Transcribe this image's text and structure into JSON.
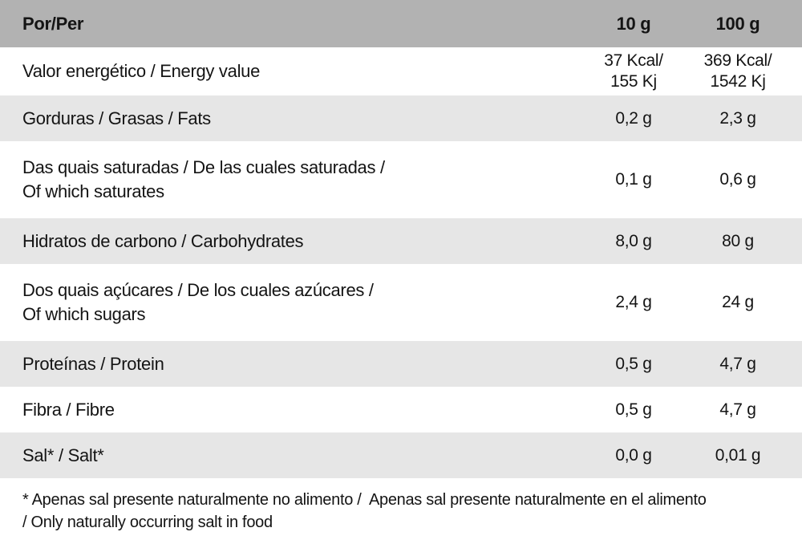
{
  "colors": {
    "header_bg": "#b2b2b2",
    "shaded_row_bg": "#e6e6e6",
    "text_color": "#141414",
    "page_bg": "#ffffff"
  },
  "table": {
    "header": {
      "label": "Por/Per",
      "col_10g": "10 g",
      "col_100g": "100 g"
    },
    "rows": [
      {
        "label": "Valor energético / Energy value",
        "per_10g": "37 Kcal/\n155 Kj",
        "per_100g": "369 Kcal/\n1542 Kj",
        "variant": "energy"
      },
      {
        "label": "Gorduras / Grasas / Fats",
        "per_10g": "0,2 g",
        "per_100g": "2,3 g",
        "variant": ""
      },
      {
        "label": "Das quais saturadas / De las cuales saturadas /\nOf which saturates",
        "per_10g": "0,1 g",
        "per_100g": "0,6 g",
        "variant": "tall"
      },
      {
        "label": "Hidratos de carbono / Carbohydrates",
        "per_10g": "8,0 g",
        "per_100g": "80 g",
        "variant": ""
      },
      {
        "label": "Dos quais açúcares / De los cuales azúcares /\nOf which sugars",
        "per_10g": "2,4 g",
        "per_100g": "24 g",
        "variant": "tall"
      },
      {
        "label": "Proteínas / Protein",
        "per_10g": "0,5 g",
        "per_100g": "4,7 g",
        "variant": ""
      },
      {
        "label": "Fibra / Fibre",
        "per_10g": "0,5 g",
        "per_100g": "4,7 g",
        "variant": ""
      },
      {
        "label": "Sal* / Salt*",
        "per_10g": "0,0 g",
        "per_100g": "0,01 g",
        "variant": ""
      }
    ],
    "footnote": {
      "line1": "* Apenas sal presente naturalmente no alimento /  Apenas sal presente naturalmente en el alimento",
      "line2": "/ Only naturally occurring salt in food"
    }
  }
}
